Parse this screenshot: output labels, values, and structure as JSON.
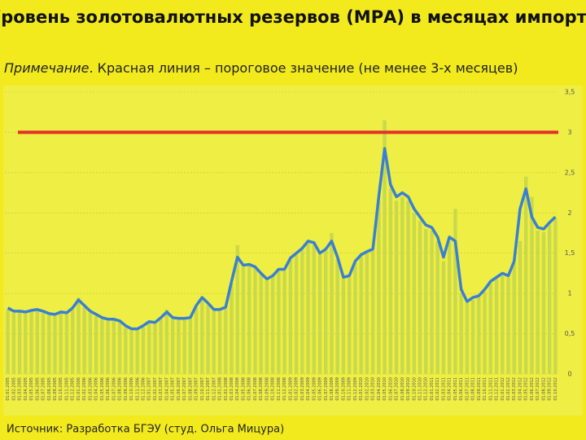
{
  "chart_data": {
    "type": "bar-line",
    "title": "Уровень золотовалютных резервов (МРА) в месяцах импорта",
    "note_label": "Примечание",
    "note_text": ". Красная линия – пороговое значение (не менее 3-х месяцев)",
    "source": "Источник: Разработка БГЭУ (студ. Ольга Мицура)",
    "categories": [
      "01.01.2005",
      "01.02.2005",
      "01.03.2005",
      "01.04.2005",
      "01.05.2005",
      "01.06.2005",
      "01.07.2005",
      "01.08.2005",
      "01.09.2005",
      "01.10.2005",
      "01.11.2005",
      "01.12.2005",
      "01.01.2006",
      "01.02.2006",
      "01.03.2006",
      "01.04.2006",
      "01.05.2006",
      "01.06.2006",
      "01.07.2006",
      "01.08.2006",
      "01.09.2006",
      "01.10.2006",
      "01.11.2006",
      "01.12.2006",
      "01.01.2007",
      "01.02.2007",
      "01.03.2007",
      "01.04.2007",
      "01.05.2007",
      "01.06.2007",
      "01.07.2007",
      "01.08.2007",
      "01.09.2007",
      "01.10.2007",
      "01.11.2007",
      "01.12.2007",
      "01.01.2008",
      "01.02.2008",
      "01.03.2008",
      "01.04.2008",
      "01.05.2008",
      "01.06.2008",
      "01.07.2008",
      "01.08.2008",
      "01.09.2008",
      "01.10.2008",
      "01.11.2008",
      "01.12.2008",
      "01.01.2009",
      "01.02.2009",
      "01.03.2009",
      "01.04.2009",
      "01.05.2009",
      "01.06.2009",
      "01.07.2009",
      "01.08.2009",
      "01.09.2009",
      "01.10.2009",
      "01.11.2009",
      "01.12.2009",
      "01.01.2010",
      "01.02.2010",
      "01.03.2010",
      "01.04.2010",
      "01.05.2010",
      "01.06.2010",
      "01.07.2010",
      "01.08.2010",
      "01.09.2010",
      "01.10.2010",
      "01.11.2010",
      "01.12.2010",
      "01.01.2011",
      "01.02.2011",
      "01.03.2011",
      "01.04.2011",
      "01.05.2011",
      "01.06.2011",
      "01.07.2011",
      "01.08.2011",
      "01.09.2011",
      "01.10.2011",
      "01.11.2011",
      "01.12.2011",
      "01.01.2012",
      "01.02.2012",
      "01.03.2012",
      "01.04.2012",
      "01.05.2012",
      "01.06.2012",
      "01.07.2012",
      "01.08.2012",
      "01.09.2012",
      "01.10.2012"
    ],
    "series": [
      {
        "kind": "bar",
        "color": "#c9d94a",
        "values": [
          0.8,
          0.76,
          0.77,
          0.75,
          0.78,
          0.79,
          0.76,
          0.73,
          0.72,
          0.76,
          0.74,
          0.8,
          0.95,
          0.83,
          0.76,
          0.72,
          0.68,
          0.66,
          0.66,
          0.64,
          0.58,
          0.54,
          0.55,
          0.58,
          0.63,
          0.62,
          0.68,
          0.8,
          0.68,
          0.67,
          0.67,
          0.68,
          0.83,
          0.93,
          0.86,
          0.78,
          0.78,
          0.81,
          1.12,
          1.6,
          1.33,
          1.34,
          1.31,
          1.23,
          1.16,
          1.2,
          1.28,
          1.28,
          1.42,
          1.48,
          1.54,
          1.63,
          1.61,
          1.48,
          1.53,
          1.75,
          1.43,
          1.18,
          1.2,
          1.38,
          1.46,
          1.5,
          1.53,
          2.15,
          3.15,
          2.3,
          2.15,
          2.2,
          2.15,
          2.0,
          1.9,
          1.8,
          1.78,
          1.65,
          1.4,
          1.65,
          2.05,
          1.0,
          0.88,
          0.92,
          0.95,
          1.02,
          1.12,
          1.18,
          1.22,
          1.2,
          1.38,
          1.65,
          2.45,
          2.2,
          1.78,
          1.76,
          1.85,
          1.93
        ]
      },
      {
        "kind": "line",
        "color": "#3a80d2",
        "values": [
          0.82,
          0.78,
          0.78,
          0.77,
          0.79,
          0.8,
          0.78,
          0.75,
          0.74,
          0.77,
          0.76,
          0.82,
          0.92,
          0.85,
          0.78,
          0.74,
          0.7,
          0.68,
          0.68,
          0.66,
          0.6,
          0.56,
          0.56,
          0.6,
          0.65,
          0.64,
          0.7,
          0.77,
          0.7,
          0.69,
          0.69,
          0.7,
          0.85,
          0.95,
          0.88,
          0.8,
          0.8,
          0.83,
          1.15,
          1.45,
          1.35,
          1.36,
          1.33,
          1.25,
          1.18,
          1.22,
          1.3,
          1.3,
          1.44,
          1.5,
          1.56,
          1.65,
          1.63,
          1.5,
          1.55,
          1.65,
          1.45,
          1.2,
          1.22,
          1.4,
          1.48,
          1.52,
          1.55,
          2.2,
          2.8,
          2.35,
          2.2,
          2.25,
          2.2,
          2.05,
          1.95,
          1.85,
          1.82,
          1.7,
          1.45,
          1.7,
          1.65,
          1.05,
          0.9,
          0.95,
          0.97,
          1.05,
          1.15,
          1.2,
          1.25,
          1.22,
          1.4,
          2.05,
          2.3,
          1.95,
          1.82,
          1.8,
          1.88,
          1.95
        ]
      }
    ],
    "threshold": 3,
    "threshold_color": "#e0302a",
    "ylim": [
      0,
      3.5
    ],
    "yticks": [
      0,
      {
        "value": 0.5,
        "label": "0,5"
      },
      1,
      {
        "value": 1.5,
        "label": "1,5"
      },
      2,
      {
        "value": 2.5,
        "label": "2,5"
      },
      3,
      {
        "value": 3.5,
        "label": "3,5"
      }
    ],
    "grid": true
  }
}
